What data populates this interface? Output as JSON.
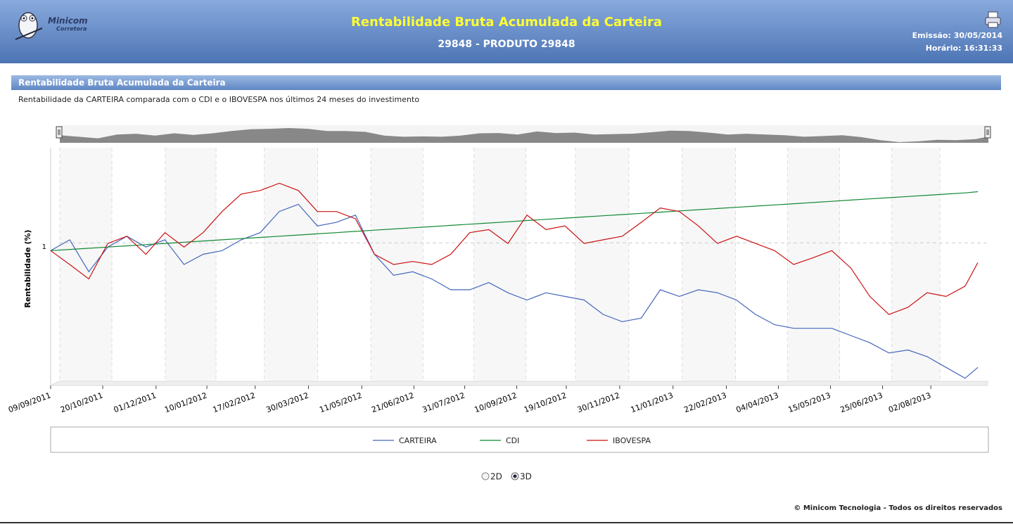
{
  "header": {
    "logo_text": "Minicom",
    "logo_subtext": "Corretora",
    "title": "Rentabilidade Bruta Acumulada da Carteira",
    "subtitle": "29848 - PRODUTO 29848",
    "emission": "Emissão: 30/05/2014",
    "time": "Horário: 16:31:33"
  },
  "section": {
    "title": "Rentabilidade Bruta Acumulada da Carteira",
    "description": "Rentabilidade da CARTEIRA comparada com o CDI e o IBOVESPA nos últimos 24 meses do investimento"
  },
  "chart_data": {
    "type": "line",
    "y_label": "Rentabilidade (%)",
    "x": [
      "09/09/2011",
      "24/09/2011",
      "09/10/2011",
      "24/10/2011",
      "08/11/2011",
      "23/11/2011",
      "08/12/2011",
      "23/12/2011",
      "07/01/2012",
      "22/01/2012",
      "06/02/2012",
      "21/02/2012",
      "07/03/2012",
      "22/03/2012",
      "06/04/2012",
      "21/04/2012",
      "06/05/2012",
      "21/05/2012",
      "05/06/2012",
      "20/06/2012",
      "05/07/2012",
      "20/07/2012",
      "04/08/2012",
      "19/08/2012",
      "03/09/2012",
      "18/09/2012",
      "03/10/2012",
      "18/10/2012",
      "02/11/2012",
      "17/11/2012",
      "02/12/2012",
      "17/12/2012",
      "01/01/2013",
      "16/01/2013",
      "31/01/2013",
      "15/02/2013",
      "02/03/2013",
      "17/03/2013",
      "01/04/2013",
      "16/04/2013",
      "01/05/2013",
      "16/05/2013",
      "31/05/2013",
      "15/06/2013",
      "30/06/2013",
      "15/07/2013",
      "30/07/2013",
      "14/08/2013",
      "29/08/2013",
      "08/09/2013"
    ],
    "xlim": [
      "09/09/2011",
      "08/09/2013"
    ],
    "xticks": [
      "09/09/2011",
      "20/10/2011",
      "01/12/2011",
      "10/01/2012",
      "17/02/2012",
      "30/03/2012",
      "11/05/2012",
      "21/06/2012",
      "31/07/2012",
      "10/09/2012",
      "19/10/2012",
      "30/11/2012",
      "11/01/2013",
      "22/02/2013",
      "04/04/2013",
      "15/05/2013",
      "25/06/2013",
      "02/08/2013"
    ],
    "ylim": [
      0.77,
      1.165
    ],
    "yticks": [
      1
    ],
    "grid": true,
    "legend": "bottom",
    "series": [
      {
        "name": "CARTEIRA",
        "color": "#4466bb",
        "values": [
          0.994,
          1.012,
          0.959,
          1.0,
          1.018,
          1.0,
          1.012,
          0.971,
          0.988,
          0.994,
          1.012,
          1.024,
          1.059,
          1.071,
          1.035,
          1.041,
          1.053,
          0.988,
          0.953,
          0.959,
          0.947,
          0.929,
          0.929,
          0.941,
          0.924,
          0.912,
          0.924,
          0.918,
          0.912,
          0.888,
          0.876,
          0.882,
          0.929,
          0.918,
          0.929,
          0.924,
          0.912,
          0.888,
          0.871,
          0.865,
          0.865,
          0.865,
          0.853,
          0.841,
          0.824,
          0.829,
          0.818,
          0.8,
          0.782,
          0.8
        ]
      },
      {
        "name": "CDI",
        "color": "#118833",
        "values": [
          0.994,
          0.996,
          0.998,
          1.0,
          1.002,
          1.004,
          1.006,
          1.008,
          1.01,
          1.012,
          1.014,
          1.016,
          1.018,
          1.02,
          1.022,
          1.024,
          1.026,
          1.028,
          1.03,
          1.032,
          1.034,
          1.036,
          1.038,
          1.04,
          1.042,
          1.044,
          1.046,
          1.048,
          1.05,
          1.052,
          1.054,
          1.056,
          1.058,
          1.06,
          1.062,
          1.064,
          1.066,
          1.068,
          1.07,
          1.072,
          1.074,
          1.076,
          1.078,
          1.08,
          1.082,
          1.084,
          1.086,
          1.088,
          1.09,
          1.092
        ]
      },
      {
        "name": "IBOVESPA",
        "color": "#cc1111",
        "values": [
          0.994,
          0.971,
          0.947,
          1.006,
          1.018,
          0.988,
          1.024,
          1.0,
          1.024,
          1.059,
          1.088,
          1.094,
          1.106,
          1.094,
          1.059,
          1.059,
          1.047,
          0.988,
          0.971,
          0.976,
          0.971,
          0.988,
          1.024,
          1.029,
          1.006,
          1.053,
          1.029,
          1.035,
          1.006,
          1.012,
          1.018,
          1.041,
          1.065,
          1.059,
          1.035,
          1.006,
          1.018,
          1.006,
          0.994,
          0.971,
          0.982,
          0.994,
          0.965,
          0.918,
          0.888,
          0.9,
          0.924,
          0.918,
          0.935,
          0.974
        ]
      }
    ]
  },
  "controls": {
    "options": [
      "2D",
      "3D"
    ],
    "selected": "3D"
  },
  "footer": "© Minicom Tecnologia - Todos os direitos reservados"
}
